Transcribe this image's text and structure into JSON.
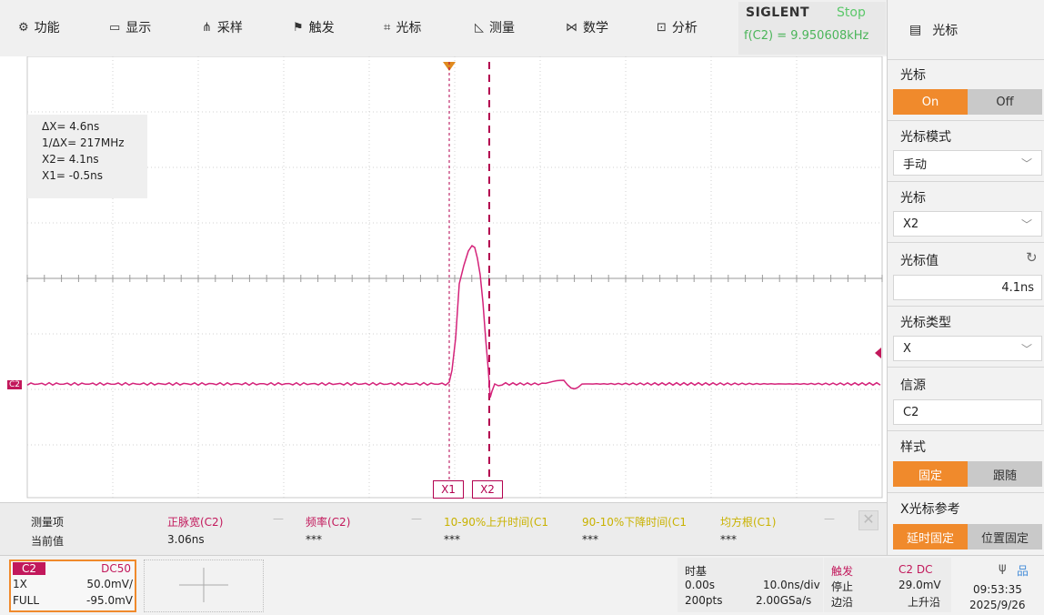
{
  "menu": [
    {
      "icon": "⚙",
      "name": "gear-icon",
      "label": "功能"
    },
    {
      "icon": "▭",
      "name": "display-icon",
      "label": "显示"
    },
    {
      "icon": "⋔",
      "name": "acquire-icon",
      "label": "采样"
    },
    {
      "icon": "⚑",
      "name": "flag-icon",
      "label": "触发"
    },
    {
      "icon": "⌗",
      "name": "cursor-grid-icon",
      "label": "光标"
    },
    {
      "icon": "◺",
      "name": "measure-icon",
      "label": "测量"
    },
    {
      "icon": "⋈",
      "name": "math-icon",
      "label": "数学"
    },
    {
      "icon": "⊡",
      "name": "analysis-icon",
      "label": "分析"
    }
  ],
  "brand": {
    "name": "SIGLENT",
    "state": "Stop",
    "freq": "f(C2) = 9.950608kHz"
  },
  "panel": {
    "title": "光标",
    "cursor_label": "光标",
    "on_label": "On",
    "off_label": "Off",
    "mode_label": "光标模式",
    "mode_value": "手动",
    "select_label": "光标",
    "select_value": "X2",
    "value_label": "光标值",
    "value": "4.1ns",
    "type_label": "光标类型",
    "type_value": "X",
    "source_label": "信源",
    "source_value": "C2",
    "style_label": "样式",
    "style_fixed": "固定",
    "style_follow": "跟随",
    "xref_label": "X光标参考",
    "xref_delay": "延时固定",
    "xref_pos": "位置固定"
  },
  "readout": {
    "dx": "ΔX= 4.6ns",
    "inv_dx": "1/ΔX= 217MHz",
    "x2": "X2= 4.1ns",
    "x1": "X1= -0.5ns"
  },
  "cursor_labels": {
    "x1": "X1",
    "x2": "X2"
  },
  "channel_marker": "C2",
  "measure": {
    "row1_label": "测量项",
    "row2_label": "当前值",
    "items": [
      {
        "name": "正脉宽(C2)",
        "value": "3.06ns",
        "color": "#c2185b"
      },
      {
        "name": "频率(C2)",
        "value": "***",
        "color": "#c2185b"
      },
      {
        "name": "10-90%上升时间(C1",
        "value": "***",
        "color": "#c9b200"
      },
      {
        "name": "90-10%下降时间(C1",
        "value": "***",
        "color": "#c9b200"
      },
      {
        "name": "均方根(C1)",
        "value": "***",
        "color": "#c9b200"
      }
    ],
    "dash": "—"
  },
  "channel": {
    "tag": "C2",
    "coupling": "DC50",
    "probe": "1X",
    "scale": "50.0mV/",
    "bw": "FULL",
    "offset": "-95.0mV"
  },
  "timebase": {
    "label": "时基",
    "delay": "0.00s",
    "scale": "10.0ns/div",
    "pts": "200pts",
    "rate": "2.00GSa/s"
  },
  "trigger": {
    "label": "触发",
    "source": "C2 DC",
    "state": "停止",
    "level": "29.0mV",
    "type": "边沿",
    "slope": "上升沿"
  },
  "clock": {
    "time": "09:53:35",
    "date": "2025/9/26",
    "usb": "ψ",
    "net": "品"
  },
  "colors": {
    "accent": "#f08a2c",
    "trace": "#d4237a",
    "cursor": "#b3004f"
  }
}
